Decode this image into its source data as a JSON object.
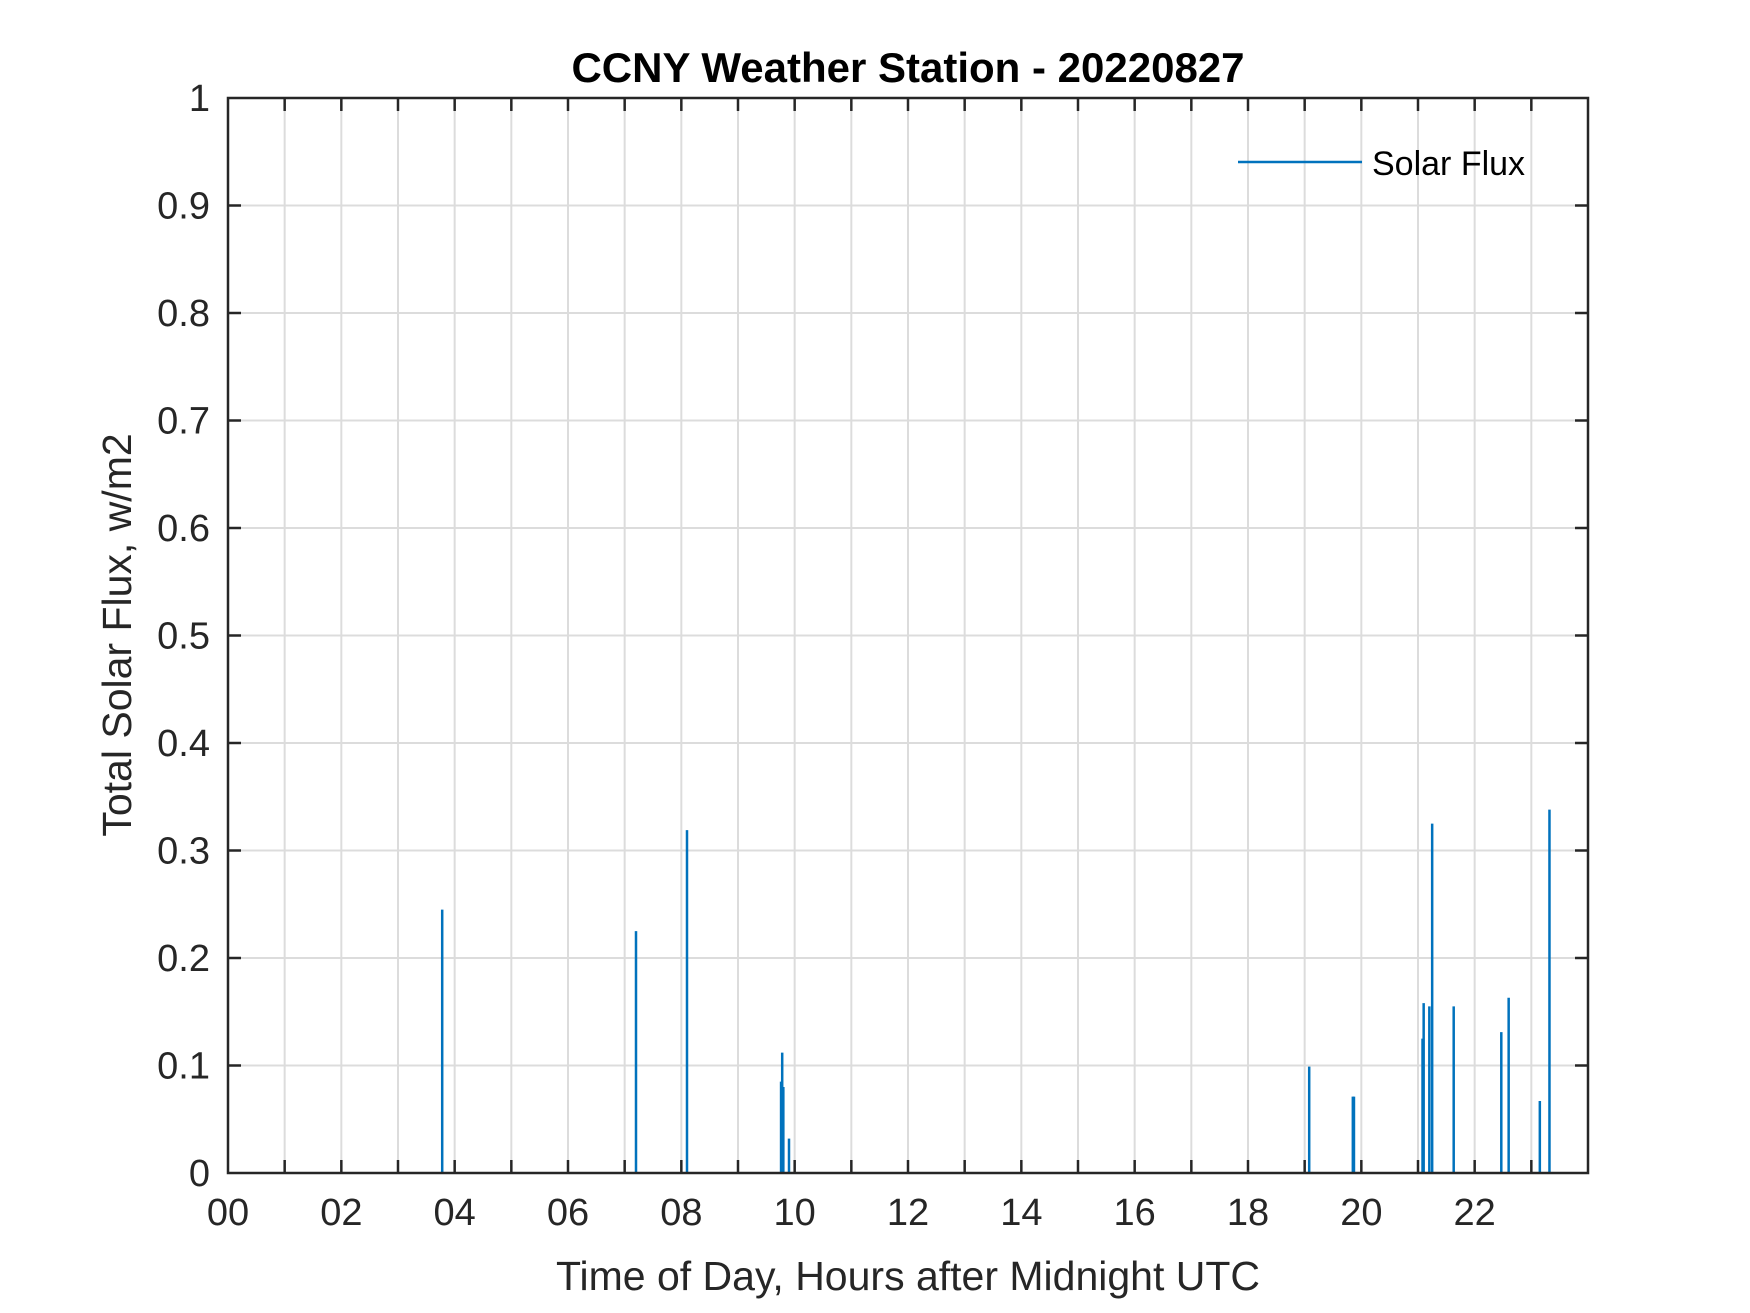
{
  "chart_data": {
    "type": "line",
    "title": "CCNY Weather Station - 20220827",
    "xlabel": "Time of Day, Hours after Midnight UTC",
    "ylabel": "Total Solar Flux, w/m2",
    "xlim": [
      0,
      24
    ],
    "ylim": [
      0,
      1
    ],
    "xticks": [
      0,
      2,
      4,
      6,
      8,
      10,
      12,
      14,
      16,
      18,
      20,
      22
    ],
    "xtick_labels": [
      "00",
      "02",
      "04",
      "06",
      "08",
      "10",
      "12",
      "14",
      "16",
      "18",
      "20",
      "22"
    ],
    "xgrid_step_hours": 1,
    "yticks": [
      0,
      0.1,
      0.2,
      0.3,
      0.4,
      0.5,
      0.6,
      0.7,
      0.8,
      0.9,
      1
    ],
    "ytick_labels": [
      "0",
      "0.1",
      "0.2",
      "0.3",
      "0.4",
      "0.5",
      "0.6",
      "0.7",
      "0.8",
      "0.9",
      "1"
    ],
    "grid": true,
    "legend_position": "top-right",
    "series": [
      {
        "name": "Solar Flux",
        "color": "#0072BD",
        "spikes": [
          {
            "x": 3.78,
            "y": 0.245
          },
          {
            "x": 7.2,
            "y": 0.225
          },
          {
            "x": 8.1,
            "y": 0.319
          },
          {
            "x": 9.76,
            "y": 0.085
          },
          {
            "x": 9.78,
            "y": 0.112
          },
          {
            "x": 9.8,
            "y": 0.08
          },
          {
            "x": 9.9,
            "y": 0.032
          },
          {
            "x": 19.08,
            "y": 0.099
          },
          {
            "x": 19.85,
            "y": 0.071
          },
          {
            "x": 19.87,
            "y": 0.071
          },
          {
            "x": 21.08,
            "y": 0.125
          },
          {
            "x": 21.1,
            "y": 0.158
          },
          {
            "x": 21.2,
            "y": 0.155
          },
          {
            "x": 21.25,
            "y": 0.325
          },
          {
            "x": 21.63,
            "y": 0.155
          },
          {
            "x": 22.47,
            "y": 0.131
          },
          {
            "x": 22.6,
            "y": 0.163
          },
          {
            "x": 23.15,
            "y": 0.067
          },
          {
            "x": 23.32,
            "y": 0.338
          }
        ]
      }
    ]
  }
}
